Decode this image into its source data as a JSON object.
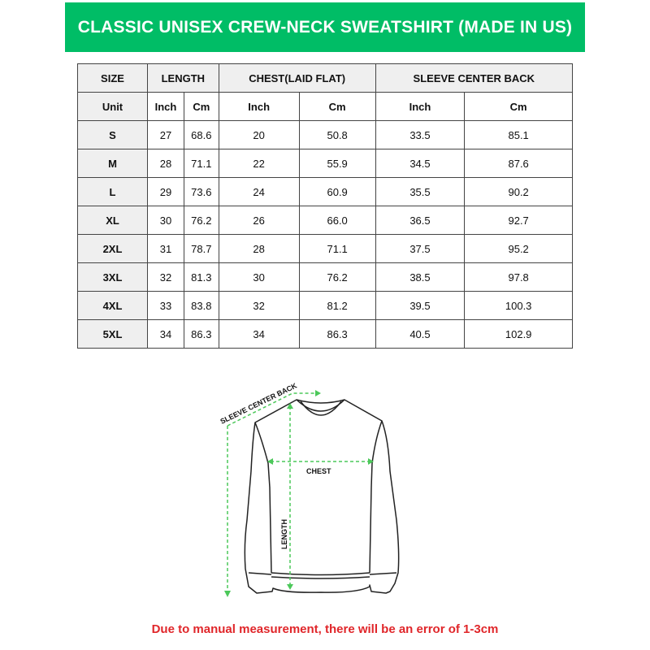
{
  "title": "CLASSIC UNISEX CREW-NECK SWEATSHIRT (MADE IN US)",
  "table": {
    "headers": [
      "SIZE",
      "LENGTH",
      "CHEST(LAID FLAT)",
      "SLEEVE CENTER BACK"
    ],
    "units": [
      "Unit",
      "Inch",
      "Cm",
      "Inch",
      "Cm",
      "Inch",
      "Cm"
    ],
    "rows": [
      [
        "S",
        "27",
        "68.6",
        "20",
        "50.8",
        "33.5",
        "85.1"
      ],
      [
        "M",
        "28",
        "71.1",
        "22",
        "55.9",
        "34.5",
        "87.6"
      ],
      [
        "L",
        "29",
        "73.6",
        "24",
        "60.9",
        "35.5",
        "90.2"
      ],
      [
        "XL",
        "30",
        "76.2",
        "26",
        "66.0",
        "36.5",
        "92.7"
      ],
      [
        "2XL",
        "31",
        "78.7",
        "28",
        "71.1",
        "37.5",
        "95.2"
      ],
      [
        "3XL",
        "32",
        "81.3",
        "30",
        "76.2",
        "38.5",
        "97.8"
      ],
      [
        "4XL",
        "33",
        "83.8",
        "32",
        "81.2",
        "39.5",
        "100.3"
      ],
      [
        "5XL",
        "34",
        "86.3",
        "34",
        "86.3",
        "40.5",
        "102.9"
      ]
    ]
  },
  "diagram": {
    "sleeve_label": "SLEEVE CENTER BACK",
    "chest_label": "CHEST",
    "length_label": "LENGTH"
  },
  "note": "Due to manual measurement, there will be an error of 1-3cm",
  "colors": {
    "brand_green": "#00bd66",
    "guide_green": "#4cc85a",
    "note_red": "#e0262a"
  }
}
